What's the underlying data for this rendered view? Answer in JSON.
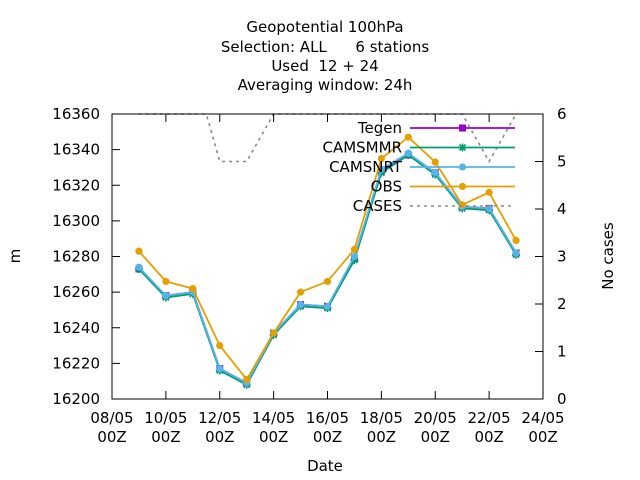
{
  "chart_data": {
    "type": "line",
    "title_lines": [
      "Geopotential 100hPa",
      "Selection: ALL      6 stations",
      "Used  12 + 24",
      "Averaging window: 24h"
    ],
    "xlabel": "Date",
    "ylabel": "m",
    "y2label": "No cases",
    "xlim": [
      0,
      16
    ],
    "ylim": [
      16200,
      16360
    ],
    "y2lim": [
      0,
      6
    ],
    "x_ticks": [
      {
        "x": 0,
        "label": [
          "08/05",
          "00Z"
        ]
      },
      {
        "x": 2,
        "label": [
          "10/05",
          "00Z"
        ]
      },
      {
        "x": 4,
        "label": [
          "12/05",
          "00Z"
        ]
      },
      {
        "x": 6,
        "label": [
          "14/05",
          "00Z"
        ]
      },
      {
        "x": 8,
        "label": [
          "16/05",
          "00Z"
        ]
      },
      {
        "x": 10,
        "label": [
          "18/05",
          "00Z"
        ]
      },
      {
        "x": 12,
        "label": [
          "20/05",
          "00Z"
        ]
      },
      {
        "x": 14,
        "label": [
          "22/05",
          "00Z"
        ]
      },
      {
        "x": 16,
        "label": [
          "24/05",
          "00Z"
        ]
      }
    ],
    "y_ticks": [
      16200,
      16220,
      16240,
      16260,
      16280,
      16300,
      16320,
      16340,
      16360
    ],
    "y2_ticks": [
      0,
      1,
      2,
      3,
      4,
      5,
      6
    ],
    "grid": false,
    "legend_position": "top-right",
    "series": [
      {
        "name": "Tegen",
        "color": "#9400d3",
        "marker": "square",
        "axis": "y",
        "x": [
          1,
          2,
          3,
          4,
          5,
          6,
          7,
          8,
          9,
          10,
          11,
          12,
          13,
          14,
          15
        ],
        "values": [
          16273,
          16258,
          16260,
          16217,
          16209,
          16237,
          16253,
          16252,
          16279,
          16328,
          16337,
          16327,
          16308,
          16307,
          16282
        ]
      },
      {
        "name": "CAMSMMR",
        "color": "#009e73",
        "marker": "star",
        "axis": "y",
        "x": [
          1,
          2,
          3,
          4,
          5,
          6,
          7,
          8,
          9,
          10,
          11,
          12,
          13,
          14,
          15
        ],
        "values": [
          16273,
          16257,
          16259,
          16216,
          16208,
          16236,
          16252,
          16251,
          16278,
          16327,
          16337,
          16326,
          16307,
          16306,
          16281
        ]
      },
      {
        "name": "CAMSNRT",
        "color": "#56b4e9",
        "marker": "circle",
        "axis": "y",
        "x": [
          1,
          2,
          3,
          4,
          5,
          6,
          7,
          8,
          9,
          10,
          11,
          12,
          13,
          14,
          15
        ],
        "values": [
          16274,
          16258,
          16260,
          16217,
          16209,
          16237,
          16253,
          16252,
          16280,
          16329,
          16338,
          16327,
          16308,
          16307,
          16282
        ]
      },
      {
        "name": "OBS",
        "color": "#e69f00",
        "marker": "circle",
        "axis": "y",
        "x": [
          1,
          2,
          3,
          4,
          5,
          6,
          7,
          8,
          9,
          10,
          11,
          12,
          13,
          14,
          15
        ],
        "values": [
          16283,
          16266,
          16262,
          16230,
          16211,
          16237,
          16260,
          16266,
          16284,
          16335,
          16347,
          16333,
          16309,
          16316,
          16289
        ]
      },
      {
        "name": "CASES",
        "color": "#888888",
        "marker": "none",
        "dashed": true,
        "axis": "y2",
        "x": [
          1,
          2,
          3,
          3.5,
          4,
          5,
          6,
          7,
          8,
          9,
          10,
          11,
          12,
          13,
          14,
          15
        ],
        "values": [
          6,
          6,
          6,
          6,
          5,
          5,
          6,
          6,
          6,
          6,
          6,
          6,
          6,
          6,
          5,
          6
        ]
      }
    ]
  }
}
